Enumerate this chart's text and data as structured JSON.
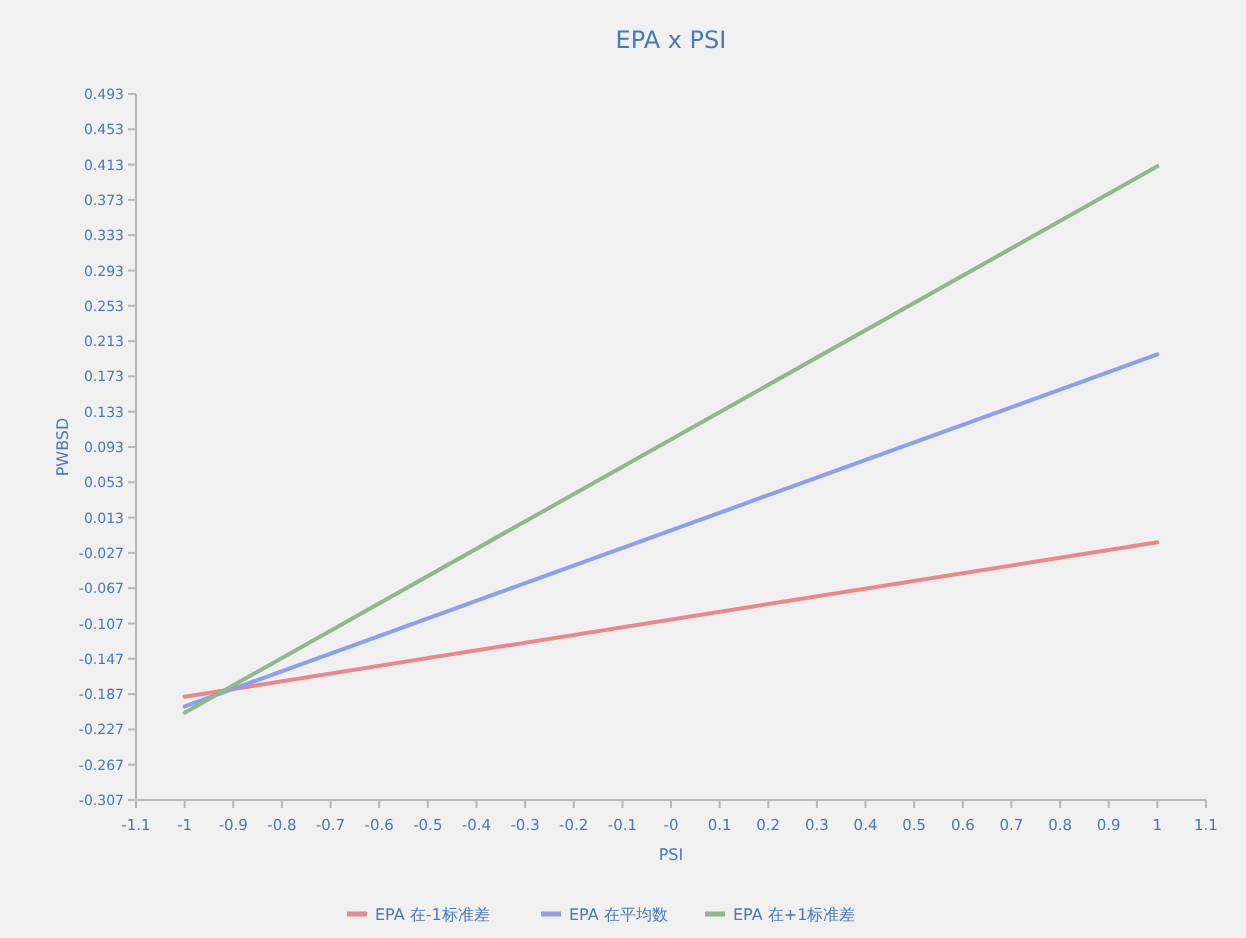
{
  "chart_data": {
    "type": "line",
    "title": "EPA x PSI",
    "xlabel": "PSI",
    "ylabel": "PWBSD",
    "x": [
      -1,
      1
    ],
    "series": [
      {
        "name": "EPA 在-1标准差",
        "color": "#e8888a",
        "values": [
          -0.19,
          -0.015
        ]
      },
      {
        "name": "EPA 在平均数",
        "color": "#8c9ef0",
        "values": [
          -0.201,
          0.198
        ]
      },
      {
        "name": "EPA 在+1标准差",
        "color": "#8fb88a",
        "values": [
          -0.208,
          0.411
        ]
      }
    ],
    "xlim": [
      -1.1,
      1.1
    ],
    "ylim": [
      -0.307,
      0.493
    ],
    "xticks": [
      -1.1,
      -1,
      -0.9,
      -0.8,
      -0.7,
      -0.6,
      -0.5,
      -0.4,
      -0.3,
      -0.2,
      -0.1,
      {
        "value": 0,
        "label": "-0"
      },
      0.1,
      0.2,
      0.3,
      0.4,
      0.5,
      0.6,
      0.7,
      0.8,
      0.9,
      1,
      1.1
    ],
    "yticks": [
      0.493,
      0.453,
      0.413,
      0.373,
      0.333,
      0.293,
      0.253,
      0.213,
      0.173,
      0.133,
      0.093,
      0.053,
      0.013,
      -0.027,
      -0.067,
      -0.107,
      -0.147,
      -0.187,
      -0.227,
      -0.267,
      -0.307
    ],
    "grid": false,
    "legend": "bottom",
    "marker": "none",
    "line_style": "solid"
  }
}
